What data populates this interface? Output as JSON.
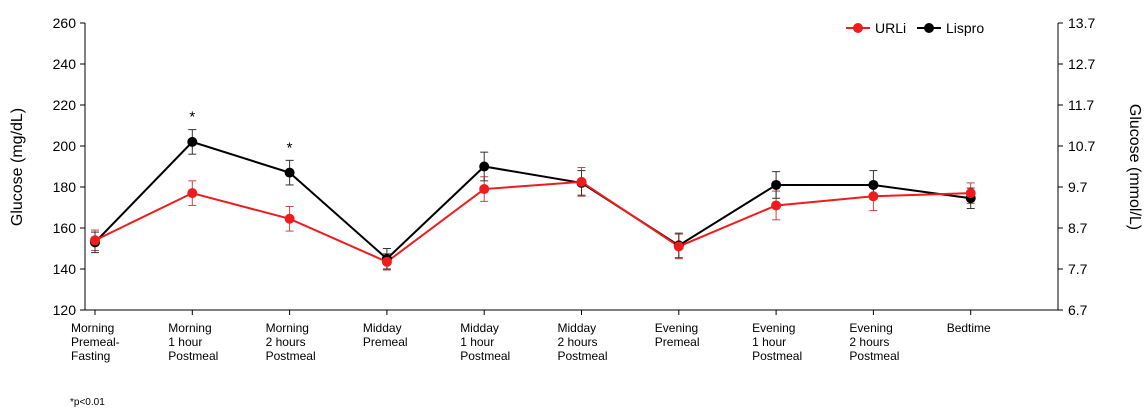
{
  "chart_data": {
    "type": "line",
    "categories": [
      [
        "Morning",
        "Premeal-",
        "Fasting"
      ],
      [
        "Morning",
        "1 hour",
        "Postmeal"
      ],
      [
        "Morning",
        "2 hours",
        "Postmeal"
      ],
      [
        "Midday",
        "Premeal"
      ],
      [
        "Midday",
        "1 hour",
        "Postmeal"
      ],
      [
        "Midday",
        "2 hours",
        "Postmeal"
      ],
      [
        "Evening",
        "Premeal"
      ],
      [
        "Evening",
        "1 hour",
        "Postmeal"
      ],
      [
        "Evening",
        "2 hours",
        "Postmeal"
      ],
      [
        "Bedtime"
      ]
    ],
    "series": [
      {
        "name": "URLi",
        "color": "#ee1c1c",
        "values": [
          154,
          177,
          164.5,
          143.5,
          179,
          182.5,
          151,
          171,
          175.5,
          177
        ],
        "errors": [
          5,
          6,
          6,
          4,
          6,
          7,
          6,
          7,
          7,
          5
        ]
      },
      {
        "name": "Lispro",
        "color": "#000000",
        "values": [
          153,
          202,
          187,
          145,
          190,
          182,
          151.5,
          181,
          181,
          174.5
        ],
        "errors": [
          5,
          6,
          6,
          5,
          7,
          6,
          6,
          6.5,
          7,
          5
        ]
      }
    ],
    "ylabel": "Glucose (mg/dL)",
    "ylim": [
      120,
      260
    ],
    "yticks": [
      120,
      140,
      160,
      180,
      200,
      220,
      240,
      260
    ],
    "y2label": "Glucose (mmol/L)",
    "y2ticks": [
      "6.7",
      "7.7",
      "8.7",
      "9.7",
      "10.7",
      "11.7",
      "12.7",
      "13.7"
    ],
    "significance": [
      {
        "category_index": 1,
        "label": "*"
      },
      {
        "category_index": 2,
        "label": "*"
      }
    ],
    "legend_position": "top-right",
    "grid": false
  },
  "footnote": "*p<0.01"
}
